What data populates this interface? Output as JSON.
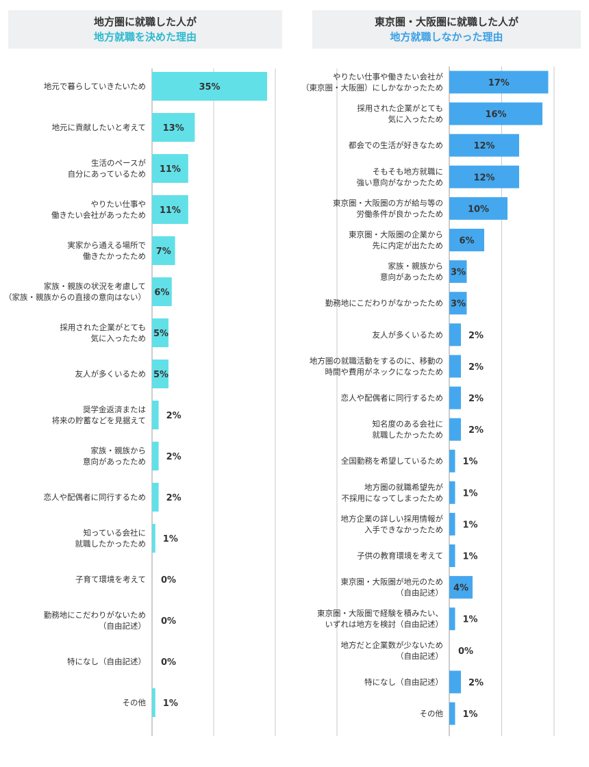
{
  "left_panel": {
    "title_line1": "地方圏に就職した人が",
    "title_line2": "地方就職を決めた理由",
    "accent_color": "#2bb9cf"
  },
  "right_panel": {
    "title_line1": "東京圏・大阪圏に就職した人が",
    "title_line2": "地方就職しなかった理由",
    "accent_color": "#3a9fe6"
  },
  "chart_data": [
    {
      "type": "bar",
      "orientation": "horizontal",
      "bar_color": "#62e0e8",
      "grid": true,
      "unit": "%",
      "categories": [
        [
          "地元で暮らしていきたいため"
        ],
        [
          "地元に貢献したいと考えて"
        ],
        [
          "生活のペースが",
          "自分にあっているため"
        ],
        [
          "やりたい仕事や",
          "働きたい会社があったため"
        ],
        [
          "実家から通える場所で",
          "働きたかったため"
        ],
        [
          "家族・親族の状況を考慮して",
          "（家族・親族からの直接の意向はない）"
        ],
        [
          "採用された企業がとても",
          "気に入ったため"
        ],
        [
          "友人が多くいるため"
        ],
        [
          "奨学金返済または",
          "将来の貯蓄などを見据えて"
        ],
        [
          "家族・親族から",
          "意向があったため"
        ],
        [
          "恋人や配偶者に同行するため"
        ],
        [
          "知っている会社に",
          "就職したかったため"
        ],
        [
          "子育て環境を考えて"
        ],
        [
          "勤務地にこだわりがないため",
          "（自由記述）"
        ],
        [
          "特になし（自由記述）"
        ],
        [
          "その他"
        ]
      ],
      "values": [
        35,
        13,
        11,
        11,
        7,
        6,
        5,
        5,
        2,
        2,
        2,
        1,
        0,
        0,
        0,
        1
      ],
      "labels": [
        "35%",
        "13%",
        "11%",
        "11%",
        "7%",
        "6%",
        "5%",
        "5%",
        "2%",
        "2%",
        "2%",
        "1%",
        "0%",
        "0%",
        "0%",
        "1%"
      ]
    },
    {
      "type": "bar",
      "orientation": "horizontal",
      "bar_color": "#45a8ee",
      "grid": true,
      "unit": "%",
      "categories": [
        [
          "やりたい仕事や働きたい会社が",
          "（東京圏・大阪圏）にしかなかったため"
        ],
        [
          "採用された企業がとても",
          "気に入ったため"
        ],
        [
          "都会での生活が好きなため"
        ],
        [
          "そもそも地方就職に",
          "強い意向がなかったため"
        ],
        [
          "東京圏・大阪圏の方が給与等の",
          "労働条件が良かったため"
        ],
        [
          "東京圏・大阪圏の企業から",
          "先に内定が出たため"
        ],
        [
          "家族・親族から",
          "意向があったため"
        ],
        [
          "勤務地にこだわりがなかったため"
        ],
        [
          "友人が多くいるため"
        ],
        [
          "地方圏の就職活動をするのに、移動の",
          "時間や費用がネックになったため"
        ],
        [
          "恋人や配偶者に同行するため"
        ],
        [
          "知名度のある会社に",
          "就職したかったため"
        ],
        [
          "全国勤務を希望しているため"
        ],
        [
          "地方圏の就職希望先が",
          "不採用になってしまったため"
        ],
        [
          "地方企業の詳しい採用情報が",
          "入手できなかったため"
        ],
        [
          "子供の教育環境を考えて"
        ],
        [
          "東京圏・大阪圏が地元のため",
          "（自由記述）"
        ],
        [
          "東京圏・大阪圏で経験を積みたい、",
          "いずれは地方を検討（自由記述）"
        ],
        [
          "地方だと企業数が少ないため",
          "（自由記述）"
        ],
        [
          "特になし（自由記述）"
        ],
        [
          "その他"
        ]
      ],
      "values": [
        17,
        16,
        12,
        12,
        10,
        6,
        3,
        3,
        2,
        2,
        2,
        2,
        1,
        1,
        1,
        1,
        4,
        1,
        0,
        2,
        1
      ],
      "labels": [
        "17%",
        "16%",
        "12%",
        "12%",
        "10%",
        "6%",
        "3%",
        "3%",
        "2%",
        "2%",
        "2%",
        "2%",
        "1%",
        "1%",
        "1%",
        "1%",
        "4%",
        "1%",
        "0%",
        "2%",
        "1%"
      ]
    }
  ]
}
